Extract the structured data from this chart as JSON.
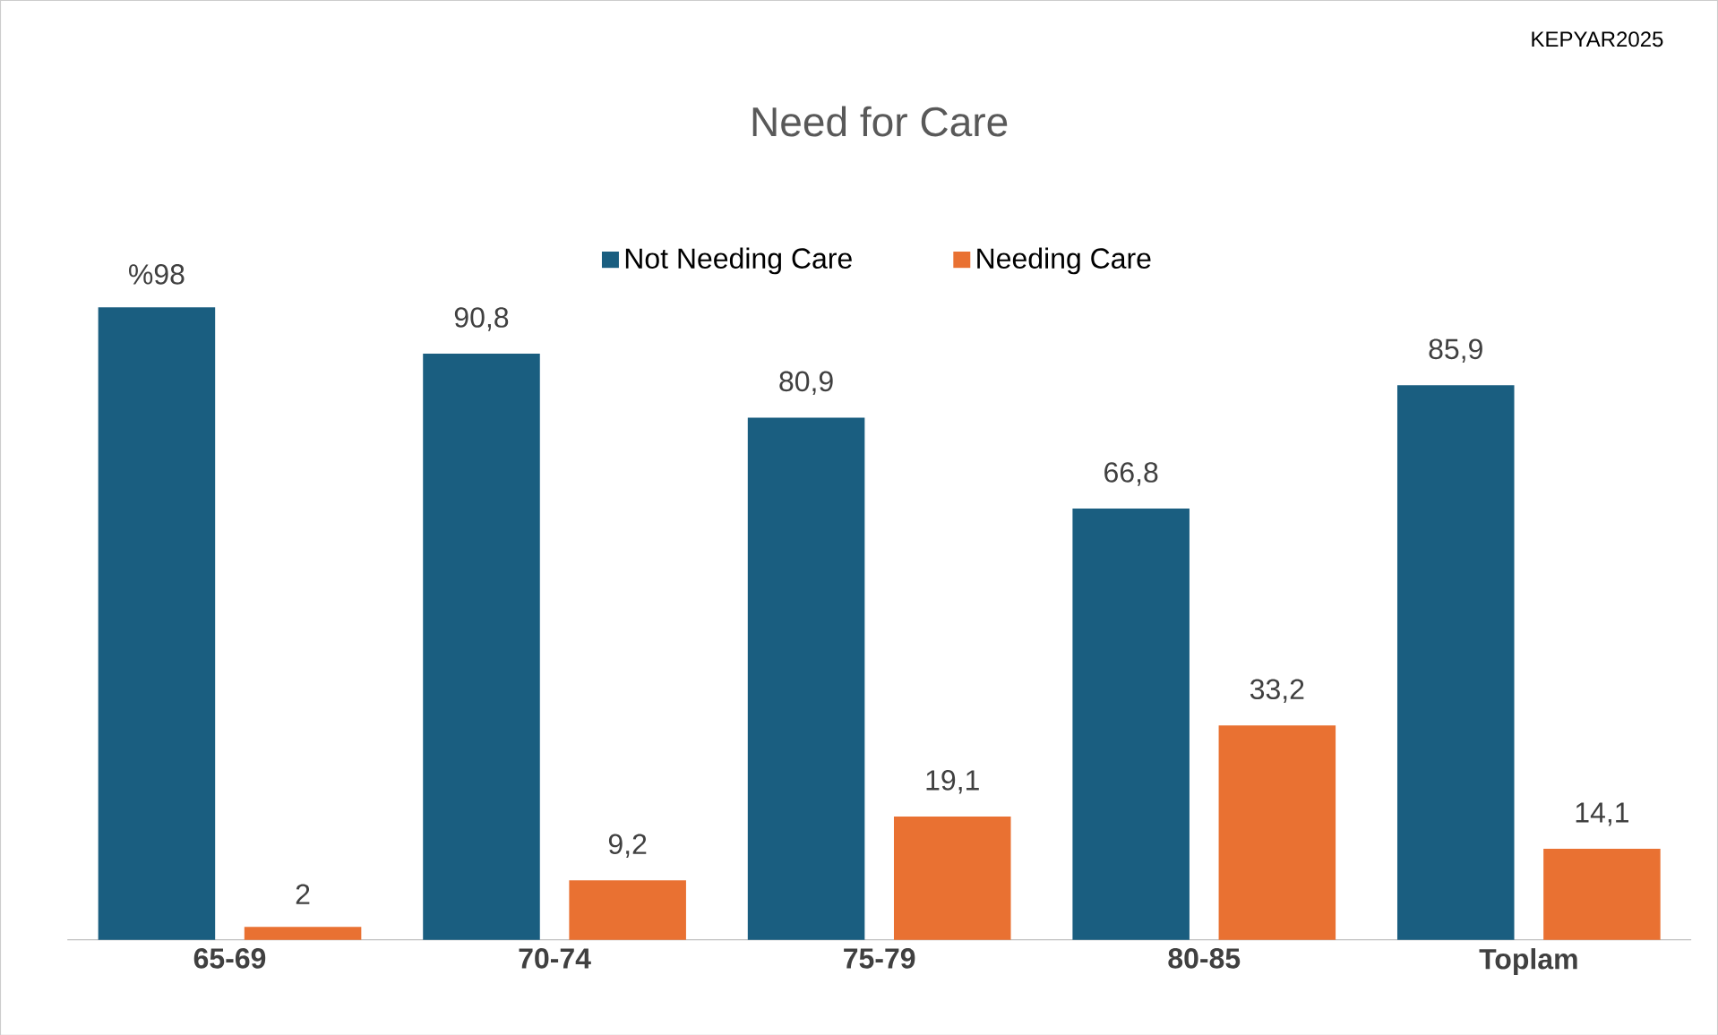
{
  "chart_data": {
    "type": "bar",
    "title": "Need for Care",
    "annotations": [
      "KEPYAR2025"
    ],
    "categories": [
      "65-69",
      "70-74",
      "75-79",
      "80-85",
      "Toplam"
    ],
    "series": [
      {
        "name": "Not Needing Care",
        "color": "#1a5e80",
        "values": [
          98,
          90.8,
          80.9,
          66.8,
          85.9
        ],
        "value_labels": [
          "%98",
          "90,8",
          "80,9",
          "66,8",
          "85,9"
        ]
      },
      {
        "name": "Needing Care",
        "color": "#e97132",
        "values": [
          2,
          9.2,
          19.1,
          33.2,
          14.1
        ],
        "value_labels": [
          "2",
          "9,2",
          "19,1",
          "33,2",
          "14,1"
        ]
      }
    ],
    "legend": "top"
  }
}
